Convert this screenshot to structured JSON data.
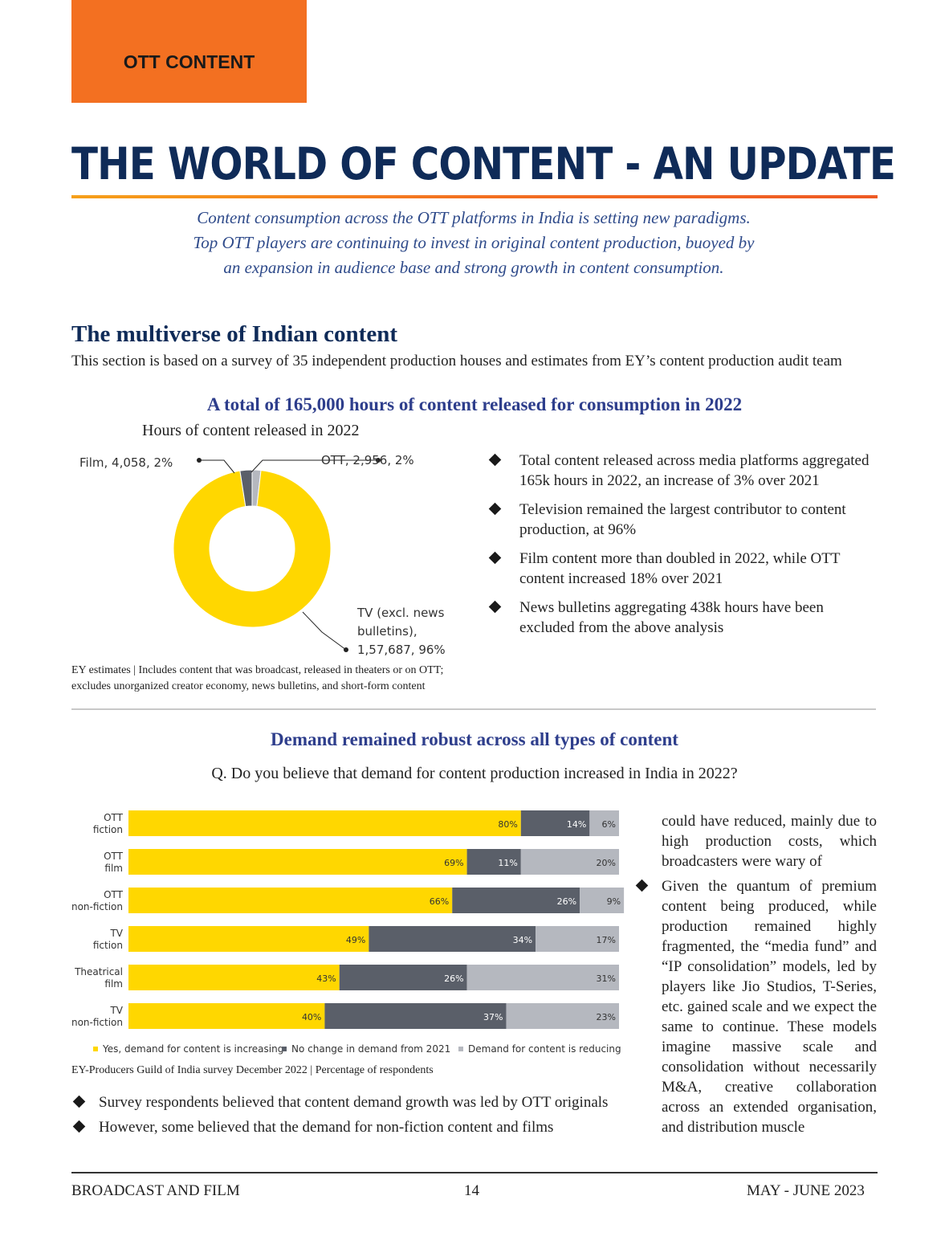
{
  "header": {
    "tag": "OTT CONTENT"
  },
  "title": "THE WORLD OF CONTENT - AN UPDATE",
  "intro": [
    "Content consumption across the OTT platforms in India is setting new paradigms.",
    "Top OTT players are continuing to invest in original content production, buoyed by",
    "an expansion in audience base and strong growth in content consumption."
  ],
  "section": {
    "heading": "The multiverse of Indian content",
    "description": "This section is based on a survey of 35 independent production houses and estimates from EY’s content production audit team"
  },
  "donut": {
    "headline": "A total of 165,000 hours of content released for consumption in 2022",
    "subtitle": "Hours of content released in 2022",
    "labels": {
      "film": "Film, 4,058, 2%",
      "ott": "OTT, 2,956, 2%",
      "tv_line1": "TV (excl. news",
      "tv_line2": "bulletins),",
      "tv_line3": "1,57,687, 96%"
    },
    "source_line1": "EY estimates | Includes content that was broadcast, released in theaters or on OTT;",
    "source_line2": "excludes unorganized creator economy, news bulletins, and short-form content"
  },
  "bullets_top": [
    "Total content released across media platforms aggregated 165k hours in 2022, an increase of 3% over 2021",
    "Television remained the largest contributor to content production, at 96%",
    "Film content more than doubled in 2022, while OTT content increased 18% over 2021",
    "News bulletins aggregating 438k hours have been excluded from the above analysis"
  ],
  "bar_chart": {
    "headline": "Demand remained robust across all types of content",
    "question": "Q. Do you believe that demand for content production increased in India in 2022?",
    "source": "EY-Producers Guild of India survey December 2022 | Percentage of respondents"
  },
  "right_column": {
    "continuation": "could have reduced, mainly due to high production costs, which broadcasters were wary of",
    "bullet": "Given the quantum of premium content being produced, while production remained highly fragmented, the “media fund” and “IP consolidation” models, led by players like Jio Studios, T-Series, etc. gained scale and we expect the same to continue. These models imagine massive scale and consolidation without necessarily M&A, creative collaboration across an extended organisation, and distribution muscle"
  },
  "bullets_bottom": [
    "Survey respondents believed that content demand growth was led by OTT originals",
    "However, some believed that the demand for non-fiction content and films"
  ],
  "footer": {
    "left": "BROADCAST AND FILM",
    "center": "14",
    "right": "MAY - JUNE 2023"
  },
  "colors": {
    "yellow": "#ffd700",
    "dark_grey": "#5a5f69",
    "light_grey": "#b5b8bf",
    "navy": "#0f2b58",
    "orange": "#f37021"
  },
  "chart_data": [
    {
      "type": "pie",
      "title": "Hours of content released in 2022",
      "categories": [
        "TV (excl. news bulletins)",
        "Film",
        "OTT"
      ],
      "values": [
        157687,
        4058,
        2956
      ],
      "percentages": [
        96,
        2,
        2
      ],
      "donut": true
    },
    {
      "type": "bar",
      "orientation": "horizontal",
      "stacked": true,
      "categories": [
        [
          "OTT",
          "fiction"
        ],
        [
          "OTT",
          "film"
        ],
        [
          "OTT",
          "non-fiction"
        ],
        [
          "TV",
          "fiction"
        ],
        [
          "Theatrical",
          "film"
        ],
        [
          "TV",
          "non-fiction"
        ]
      ],
      "series": [
        {
          "name": "Yes, demand for content is increasing",
          "values": [
            80,
            69,
            66,
            49,
            43,
            40
          ]
        },
        {
          "name": "No change in demand from 2021",
          "values": [
            14,
            11,
            26,
            34,
            26,
            37
          ]
        },
        {
          "name": "Demand for content is reducing",
          "values": [
            6,
            20,
            9,
            17,
            31,
            23
          ]
        }
      ],
      "value_suffix": "%",
      "xlim": [
        0,
        100
      ],
      "legend": "bottom"
    }
  ]
}
